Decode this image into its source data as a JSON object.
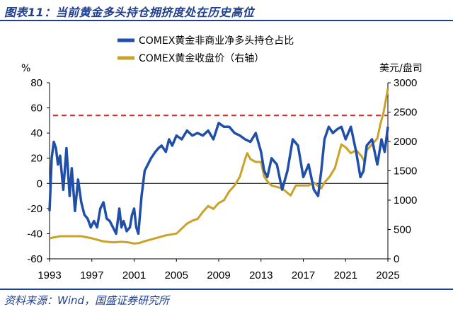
{
  "figure": {
    "title": "图表11：当前黄金多头持仓拥挤度处在历史高位",
    "source": "资料来源：Wind，国盛证券研究所"
  },
  "chart_data": {
    "type": "line",
    "left_unit": "%",
    "right_unit": "美元/盘司",
    "legend": [
      "COMEX黄金非商业净多头持仓占比",
      "COMEX黄金收盘价（右轴）"
    ],
    "x_ticks": [
      "1993",
      "1997",
      "2001",
      "2005",
      "2009",
      "2013",
      "2017",
      "2021",
      "2025"
    ],
    "y_left_ticks": [
      "80",
      "60",
      "40",
      "20",
      "0",
      "-20",
      "-40",
      "-60"
    ],
    "y_right_ticks": [
      "3000",
      "2500",
      "2000",
      "1500",
      "1000",
      "500",
      "0"
    ],
    "y_left_lim": [
      -60,
      80
    ],
    "y_right_lim": [
      0,
      3000
    ],
    "x_lim": [
      1993,
      2025
    ],
    "reference_line": {
      "axis": "left",
      "value": 54,
      "color": "#e02020",
      "style": "dashed"
    },
    "colors": {
      "positioning": "#1f4fa8",
      "price": "#c9a227"
    },
    "series": [
      {
        "name": "COMEX黄金非商业净多头持仓占比",
        "axis": "left",
        "x": [
          1993.0,
          1993.2,
          1993.4,
          1993.6,
          1993.8,
          1994.0,
          1994.3,
          1994.6,
          1994.9,
          1995.1,
          1995.4,
          1995.7,
          1996.0,
          1996.3,
          1996.6,
          1996.9,
          1997.2,
          1997.5,
          1997.8,
          1998.1,
          1998.4,
          1998.7,
          1999.0,
          1999.3,
          1999.6,
          1999.8,
          2000.0,
          2000.3,
          2000.6,
          2000.8,
          2001.0,
          2001.2,
          2001.4,
          2001.7,
          2002.0,
          2002.3,
          2002.6,
          2003.0,
          2003.3,
          2003.6,
          2004.0,
          2004.3,
          2004.6,
          2005.0,
          2005.5,
          2006.0,
          2006.5,
          2007.0,
          2007.5,
          2008.0,
          2008.5,
          2009.0,
          2009.5,
          2010.0,
          2010.5,
          2011.0,
          2011.5,
          2012.0,
          2012.5,
          2013.0,
          2013.3,
          2013.6,
          2014.0,
          2014.5,
          2015.0,
          2015.5,
          2016.0,
          2016.5,
          2017.0,
          2017.5,
          2018.0,
          2018.4,
          2018.7,
          2019.0,
          2019.4,
          2019.8,
          2020.2,
          2020.6,
          2021.0,
          2021.5,
          2022.0,
          2022.4,
          2022.7,
          2023.0,
          2023.5,
          2024.0,
          2024.4,
          2024.7,
          2025.0
        ],
        "values": [
          -22,
          20,
          33,
          28,
          15,
          22,
          -5,
          28,
          -10,
          12,
          -22,
          3,
          -15,
          -25,
          -28,
          -35,
          -30,
          -35,
          -20,
          -15,
          -28,
          -30,
          -35,
          -40,
          -20,
          -35,
          -30,
          -38,
          -35,
          -25,
          -20,
          -35,
          -40,
          -10,
          10,
          15,
          20,
          25,
          28,
          30,
          25,
          35,
          30,
          38,
          35,
          42,
          38,
          40,
          38,
          42,
          35,
          48,
          45,
          45,
          40,
          38,
          35,
          33,
          40,
          25,
          10,
          5,
          20,
          15,
          -5,
          10,
          35,
          30,
          5,
          15,
          -5,
          -10,
          10,
          35,
          45,
          40,
          43,
          45,
          35,
          45,
          25,
          5,
          10,
          30,
          35,
          15,
          35,
          25,
          45
        ]
      },
      {
        "name": "COMEX黄金收盘价（右轴）",
        "axis": "right",
        "x": [
          1993.0,
          1994.0,
          1995.0,
          1996.0,
          1997.0,
          1998.0,
          1999.0,
          1999.8,
          2000.5,
          2001.0,
          2001.5,
          2002.0,
          2003.0,
          2004.0,
          2005.0,
          2006.0,
          2006.5,
          2007.0,
          2007.5,
          2008.0,
          2008.5,
          2009.0,
          2009.5,
          2010.0,
          2010.5,
          2011.0,
          2011.5,
          2011.7,
          2012.0,
          2012.5,
          2013.0,
          2013.3,
          2013.7,
          2014.0,
          2015.0,
          2015.8,
          2016.3,
          2016.8,
          2017.5,
          2018.0,
          2018.7,
          2019.0,
          2019.5,
          2020.0,
          2020.6,
          2021.0,
          2021.5,
          2022.0,
          2022.5,
          2022.8,
          2023.0,
          2023.5,
          2024.0,
          2024.3,
          2024.6,
          2025.0
        ],
        "values": [
          350,
          385,
          385,
          385,
          350,
          300,
          280,
          290,
          280,
          260,
          270,
          300,
          350,
          400,
          430,
          600,
          650,
          680,
          800,
          900,
          850,
          950,
          1000,
          1150,
          1250,
          1400,
          1700,
          1800,
          1700,
          1650,
          1650,
          1400,
          1300,
          1250,
          1200,
          1080,
          1250,
          1250,
          1250,
          1300,
          1200,
          1300,
          1400,
          1550,
          1950,
          1900,
          1800,
          1850,
          1750,
          1650,
          1850,
          1950,
          2050,
          2300,
          2500,
          2900
        ]
      }
    ]
  }
}
